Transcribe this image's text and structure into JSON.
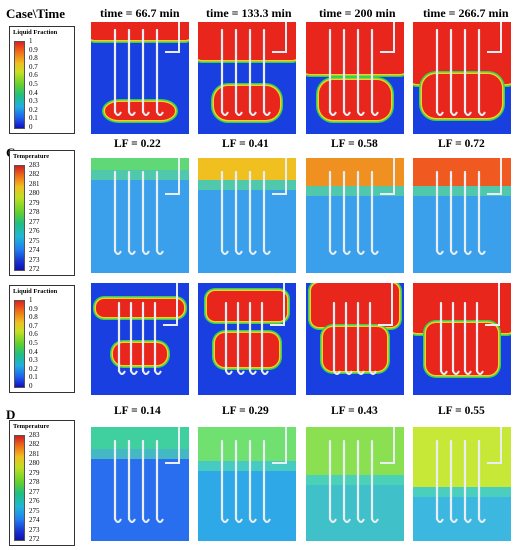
{
  "headers": {
    "corner": "Case\\Time",
    "times": [
      "time = 66.7 min",
      "time = 133.3 min",
      "time = 200 min",
      "time = 266.7 min"
    ]
  },
  "case_labels": [
    "C",
    "D"
  ],
  "lf_rows": {
    "case_c": [
      "LF = 0.22",
      "LF = 0.41",
      "LF = 0.58",
      "LF = 0.72"
    ],
    "case_d": [
      "LF = 0.14",
      "LF = 0.29",
      "LF = 0.43",
      "LF = 0.55"
    ]
  },
  "legend_liquid_fraction": {
    "title": "Liquid Fraction",
    "ticks": [
      "1",
      "0.9",
      "0.8",
      "0.7",
      "0.6",
      "0.5",
      "0.4",
      "0.3",
      "0.2",
      "0.1",
      "0"
    ]
  },
  "legend_temperature": {
    "title": "Temperature",
    "ticks": [
      "283",
      "282",
      "281",
      "280",
      "279",
      "278",
      "277",
      "276",
      "275",
      "274",
      "273",
      "272"
    ]
  },
  "colors": {
    "liquid": "#e8261c",
    "solid": "#1a3fe0",
    "interface": "#33d05a",
    "pcm_cold": "#3aa0ec",
    "pcm_warm": "#9ee040",
    "hot_top": "#f06020"
  }
}
